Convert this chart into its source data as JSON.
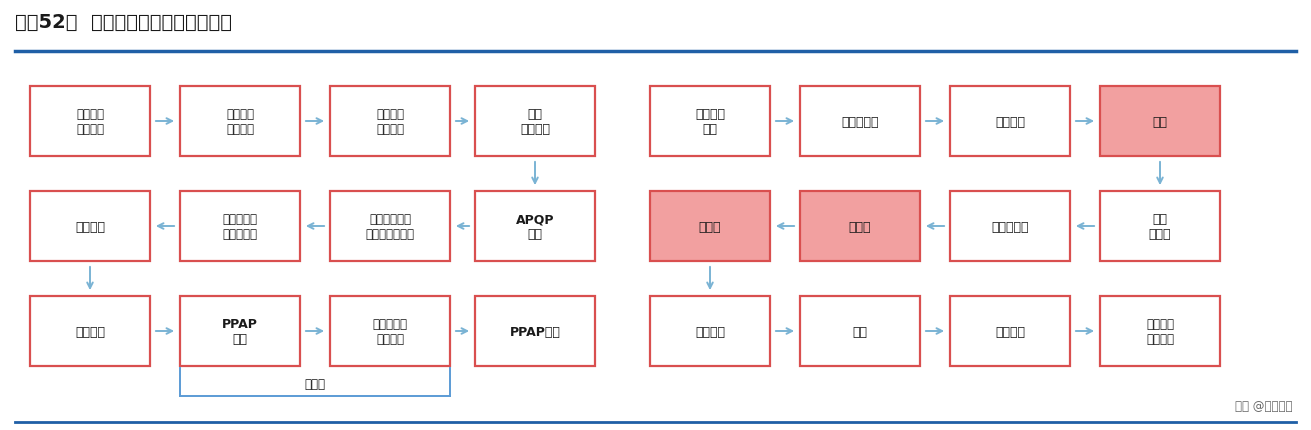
{
  "title": "图表52：  产品设计开发与制造流程图",
  "title_color": "#1a1a1a",
  "title_fontsize": 14,
  "header_line_color": "#1f5fa6",
  "bg_color": "#ffffff",
  "arrow_color": "#7ab3d4",
  "border_color_red": "#d94f4f",
  "border_color_blue": "#5b9bd5",
  "fill_red": "#f2a0a0",
  "fill_white": "#ffffff",
  "text_color": "#1a1a1a",
  "watermark": "头条 @未来智库",
  "left_nodes": [
    {
      "id": "n1",
      "row": 0,
      "col": 0,
      "text": "客户产品\n部件开发",
      "fill": "white"
    },
    {
      "id": "n2",
      "row": 0,
      "col": 1,
      "text": "客户零件\n功能设计",
      "fill": "white"
    },
    {
      "id": "n3",
      "row": 0,
      "col": 2,
      "text": "公司零件\n工艺设计",
      "fill": "white"
    },
    {
      "id": "n4",
      "row": 0,
      "col": 3,
      "text": "获取\n开发订单",
      "fill": "white"
    },
    {
      "id": "n5",
      "row": 1,
      "col": 0,
      "text": "工装制作",
      "fill": "white"
    },
    {
      "id": "n6",
      "row": 1,
      "col": 1,
      "text": "模具及夹具\n等工装研发",
      "fill": "white"
    },
    {
      "id": "n7",
      "row": 1,
      "col": 2,
      "text": "压铸及机加工\n等制造工艺设计",
      "fill": "white"
    },
    {
      "id": "n8",
      "row": 1,
      "col": 3,
      "text": "APQP\n策划",
      "fill": "white"
    },
    {
      "id": "n9",
      "row": 2,
      "col": 0,
      "text": "产品试作",
      "fill": "white"
    },
    {
      "id": "n10",
      "row": 2,
      "col": 1,
      "text": "PPAP\n提交",
      "fill": "white"
    },
    {
      "id": "n11",
      "row": 2,
      "col": 2,
      "text": "产品检验及\n功能试验",
      "fill": "white"
    },
    {
      "id": "n12",
      "row": 2,
      "col": 3,
      "text": "PPAP批准",
      "fill": "white"
    }
  ],
  "right_nodes": [
    {
      "id": "r1",
      "row": 0,
      "col": 0,
      "text": "产品订单\n评审",
      "fill": "white"
    },
    {
      "id": "r2",
      "row": 0,
      "col": 1,
      "text": "原材料采购",
      "fill": "white"
    },
    {
      "id": "r3",
      "row": 0,
      "col": 2,
      "text": "集中熔炼",
      "fill": "white"
    },
    {
      "id": "r4",
      "row": 0,
      "col": 3,
      "text": "压铸",
      "fill": "pink"
    },
    {
      "id": "r5",
      "row": 1,
      "col": 0,
      "text": "机加工",
      "fill": "pink"
    },
    {
      "id": "r6",
      "row": 1,
      "col": 1,
      "text": "热处理",
      "fill": "pink"
    },
    {
      "id": "r7",
      "row": 1,
      "col": 2,
      "text": "喷丸或振磨",
      "fill": "white"
    },
    {
      "id": "r8",
      "row": 1,
      "col": 3,
      "text": "切边\n去毛刺",
      "fill": "white"
    },
    {
      "id": "r9",
      "row": 2,
      "col": 0,
      "text": "表面处理",
      "fill": "white"
    },
    {
      "id": "r10",
      "row": 2,
      "col": 1,
      "text": "组装",
      "fill": "white"
    },
    {
      "id": "r11",
      "row": 2,
      "col": 2,
      "text": "耐压试验",
      "fill": "white"
    },
    {
      "id": "r12",
      "row": 2,
      "col": 3,
      "text": "检验包装\n入库发运",
      "fill": "white"
    }
  ],
  "bracket_text": "车项目"
}
